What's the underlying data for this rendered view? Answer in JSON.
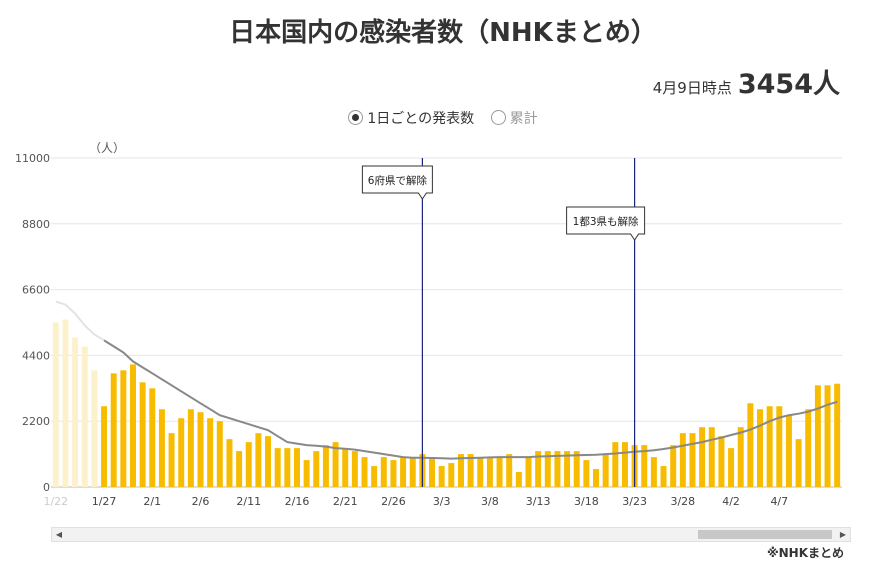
{
  "header": {
    "title": "日本国内の感染者数（NHKまとめ）",
    "asof_label": "4月9日時点",
    "asof_value": "3454人"
  },
  "toggle": {
    "daily_label": "1日ごとの発表数",
    "cumulative_label": "累計",
    "selected": "daily"
  },
  "footer": {
    "source": "※NHKまとめ"
  },
  "colors": {
    "bar": "#f7bc00",
    "bar_faded": "#fdf1cc",
    "avg_line": "#888888",
    "event_line": "#1a237e",
    "grid": "#e6e6e6"
  },
  "chart_data": {
    "type": "bar",
    "title": "日本国内の感染者数（NHKまとめ）",
    "unit_label": "（人）",
    "ylim": [
      0,
      11000
    ],
    "yticks": [
      "0",
      "2200",
      "4400",
      "6600",
      "8800",
      "11000"
    ],
    "grid": true,
    "x_tick_labels": [
      {
        "i": 0,
        "label": "1/22"
      },
      {
        "i": 5,
        "label": "1/27"
      },
      {
        "i": 10,
        "label": "2/1"
      },
      {
        "i": 15,
        "label": "2/6"
      },
      {
        "i": 20,
        "label": "2/11"
      },
      {
        "i": 25,
        "label": "2/16"
      },
      {
        "i": 30,
        "label": "2/21"
      },
      {
        "i": 35,
        "label": "2/26"
      },
      {
        "i": 40,
        "label": "3/3"
      },
      {
        "i": 45,
        "label": "3/8"
      },
      {
        "i": 50,
        "label": "3/13"
      },
      {
        "i": 55,
        "label": "3/18"
      },
      {
        "i": 60,
        "label": "3/23"
      },
      {
        "i": 65,
        "label": "3/28"
      },
      {
        "i": 70,
        "label": "4/2"
      },
      {
        "i": 75,
        "label": "4/7"
      }
    ],
    "dates_start": "1/22",
    "dates_end": "4/9",
    "daily": [
      5500,
      5600,
      5000,
      4700,
      3900,
      2700,
      3800,
      3900,
      4100,
      3500,
      3300,
      2600,
      1800,
      2300,
      2600,
      2500,
      2300,
      2200,
      1600,
      1200,
      1500,
      1800,
      1700,
      1300,
      1300,
      1300,
      900,
      1200,
      1400,
      1500,
      1300,
      1200,
      1000,
      700,
      1000,
      900,
      1000,
      1000,
      1100,
      1000,
      700,
      800,
      1100,
      1100,
      1000,
      1000,
      1000,
      1100,
      500,
      1000,
      1200,
      1200,
      1200,
      1200,
      1200,
      900,
      600,
      1100,
      1500,
      1500,
      1400,
      1400,
      1000,
      700,
      1400,
      1800,
      1800,
      2000,
      2000,
      1700,
      1300,
      2000,
      2800,
      2600,
      2700,
      2700,
      2400,
      1600,
      2600,
      3400,
      3400,
      3454
    ],
    "seven_day_avg": [
      6200,
      6100,
      5800,
      5400,
      5100,
      4900,
      4700,
      4500,
      4200,
      4000,
      3800,
      3600,
      3400,
      3200,
      3000,
      2800,
      2600,
      2400,
      2300,
      2200,
      2100,
      2000,
      1900,
      1700,
      1500,
      1450,
      1400,
      1380,
      1350,
      1300,
      1280,
      1250,
      1200,
      1150,
      1100,
      1050,
      1000,
      980,
      980,
      970,
      960,
      950,
      960,
      970,
      980,
      990,
      1000,
      1000,
      1000,
      1000,
      1020,
      1030,
      1040,
      1050,
      1060,
      1070,
      1080,
      1100,
      1120,
      1150,
      1180,
      1200,
      1230,
      1270,
      1320,
      1380,
      1440,
      1500,
      1580,
      1650,
      1740,
      1820,
      1920,
      2050,
      2200,
      2320,
      2400,
      2450,
      2520,
      2620,
      2750,
      2850
    ],
    "faded_until_index": 4,
    "events": [
      {
        "index": 38,
        "label": "6府県で解除"
      },
      {
        "index": 60,
        "label": "1都3県も解除"
      }
    ]
  }
}
